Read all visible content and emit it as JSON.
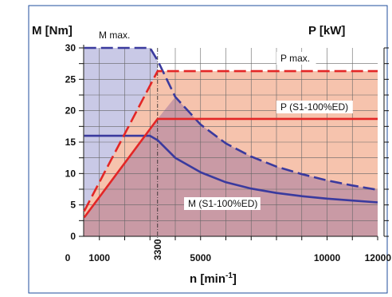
{
  "chart_data": {
    "type": "line",
    "x_axis": {
      "label_main": "n [min",
      "label_sup": "-1",
      "label_end": "]",
      "range": [
        0,
        12000
      ],
      "ticks": [
        {
          "value": 0,
          "label": "0"
        },
        {
          "value": 1000,
          "label": "1000"
        },
        {
          "value": 3300,
          "label": "3300"
        },
        {
          "value": 5000,
          "label": "5000"
        },
        {
          "value": 10000,
          "label": "10000"
        },
        {
          "value": 12000,
          "label": "12000"
        }
      ],
      "grid_step": 1000
    },
    "y_left": {
      "label": "M [Nm]",
      "range": [
        0,
        30
      ],
      "ticks": [
        {
          "value": 0,
          "label": "0"
        },
        {
          "value": 5,
          "label": "5"
        },
        {
          "value": 10,
          "label": "10"
        },
        {
          "value": 15,
          "label": "15"
        },
        {
          "value": 20,
          "label": "20"
        },
        {
          "value": 25,
          "label": "25"
        },
        {
          "value": 30,
          "label": "30"
        }
      ],
      "grid_step": 2.5
    },
    "y_right": {
      "label": "P [kW]"
    },
    "grid": true,
    "series": [
      {
        "name": "M max.",
        "color": "#3a3a9e",
        "style": "dashed",
        "points": [
          [
            400,
            30
          ],
          [
            3000,
            30
          ],
          [
            3300,
            28
          ],
          [
            4000,
            22.2
          ],
          [
            5000,
            17.8
          ],
          [
            6000,
            14.8
          ],
          [
            7000,
            12.7
          ],
          [
            8000,
            11.1
          ],
          [
            9000,
            9.9
          ],
          [
            10000,
            8.9
          ],
          [
            11000,
            8.1
          ],
          [
            12000,
            7.4
          ]
        ]
      },
      {
        "name": "M (S1-100%ED)",
        "color": "#3a3a9e",
        "style": "solid",
        "points": [
          [
            400,
            16
          ],
          [
            3000,
            16
          ],
          [
            3300,
            15.3
          ],
          [
            4000,
            12.5
          ],
          [
            5000,
            10.2
          ],
          [
            6000,
            8.6
          ],
          [
            7000,
            7.6
          ],
          [
            8000,
            6.9
          ],
          [
            9000,
            6.4
          ],
          [
            10000,
            6.0
          ],
          [
            11000,
            5.7
          ],
          [
            12000,
            5.4
          ]
        ]
      },
      {
        "name": "P max.",
        "color": "#e32626",
        "style": "dashed",
        "points": [
          [
            400,
            4
          ],
          [
            3300,
            26.3
          ],
          [
            12000,
            26.3
          ]
        ]
      },
      {
        "name": "P (S1-100%ED)",
        "color": "#e32626",
        "style": "solid",
        "points": [
          [
            400,
            3
          ],
          [
            3300,
            18.7
          ],
          [
            12000,
            18.7
          ]
        ]
      }
    ],
    "annotations": [
      {
        "text": "M max.",
        "series": "M max."
      },
      {
        "text": "P max.",
        "series": "P max."
      },
      {
        "text": "P (S1-100%ED)",
        "series": "P (S1-100%ED)"
      },
      {
        "text": "M (S1-100%ED)",
        "series": "M (S1-100%ED)"
      }
    ],
    "fills": {
      "blue_region": "#c9c9e6",
      "red_region": "#f6c3ad",
      "overlap_region": "#c99aa5"
    }
  }
}
